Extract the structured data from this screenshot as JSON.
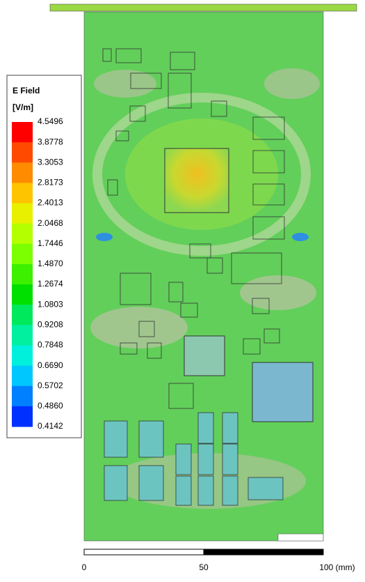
{
  "legend": {
    "title": "E Field",
    "unit": "[V/m]",
    "levels": [
      "4.5496",
      "3.8778",
      "3.3053",
      "2.8173",
      "2.4013",
      "2.0468",
      "1.7446",
      "1.4870",
      "1.2674",
      "1.0803",
      "0.9208",
      "0.7848",
      "0.6690",
      "0.5702",
      "0.4860",
      "0.4142"
    ],
    "colors": [
      "#ff0000",
      "#ff4a00",
      "#ff8c00",
      "#ffc400",
      "#e8f000",
      "#b4ff00",
      "#7cff00",
      "#3cf000",
      "#00e000",
      "#00e85c",
      "#00f0a0",
      "#00f0dc",
      "#00c8ff",
      "#0080ff",
      "#0030ff"
    ]
  },
  "scale_bar": {
    "labels": [
      "0",
      "50",
      "100 (mm)"
    ]
  }
}
